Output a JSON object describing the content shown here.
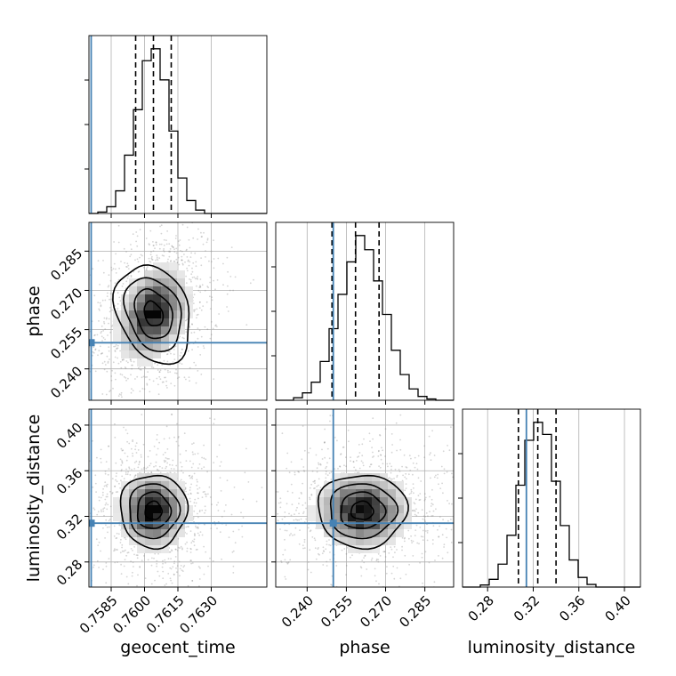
{
  "chart_data": {
    "type": "corner",
    "parameters": [
      "geocent_time",
      "phase",
      "luminosity_distance"
    ],
    "axis_labels": {
      "geocent_time": "geocent_time",
      "phase": "phase",
      "luminosity_distance": "luminosity_distance"
    },
    "ranges": {
      "geocent_time": [
        0.7575,
        0.7655
      ],
      "phase": [
        0.228,
        0.296
      ],
      "luminosity_distance": [
        0.258,
        0.414
      ]
    },
    "ticks": {
      "geocent_time": [
        0.7585,
        0.76,
        0.7615,
        0.763
      ],
      "phase": [
        0.24,
        0.255,
        0.27,
        0.285
      ],
      "luminosity_distance": [
        0.28,
        0.32,
        0.36,
        0.4
      ]
    },
    "tick_labels": {
      "geocent_time": [
        "0.7585",
        "0.7600",
        "0.7615",
        "0.7630"
      ],
      "phase": [
        "0.240",
        "0.255",
        "0.270",
        "0.285"
      ],
      "luminosity_distance": [
        "0.28",
        "0.32",
        "0.36",
        "0.40"
      ]
    },
    "truths": {
      "geocent_time": 0.7576,
      "phase": 0.25,
      "luminosity_distance": 0.314
    },
    "quantiles": {
      "geocent_time": [
        0.7596,
        0.7604,
        0.7612
      ],
      "phase": [
        0.2495,
        0.2585,
        0.2675
      ],
      "luminosity_distance": [
        0.307,
        0.324,
        0.34
      ]
    },
    "means": {
      "geocent_time": 0.7604,
      "phase": 0.261,
      "luminosity_distance": 0.325
    },
    "sigmas": {
      "geocent_time": 0.00075,
      "phase": 0.0085,
      "luminosity_distance": 0.016
    },
    "histograms": {
      "geocent_time": {
        "bin_edges_range": [
          0.7575,
          0.7655
        ],
        "n_bins": 20
      },
      "phase": {
        "bin_edges_range": [
          0.228,
          0.296
        ],
        "n_bins": 20
      },
      "luminosity_distance": {
        "bin_edges_range": [
          0.258,
          0.414
        ],
        "n_bins": 20
      }
    },
    "grid": true,
    "truth_color": "#4682b4",
    "contour_color": "#000000",
    "sample_color": "#888888"
  }
}
